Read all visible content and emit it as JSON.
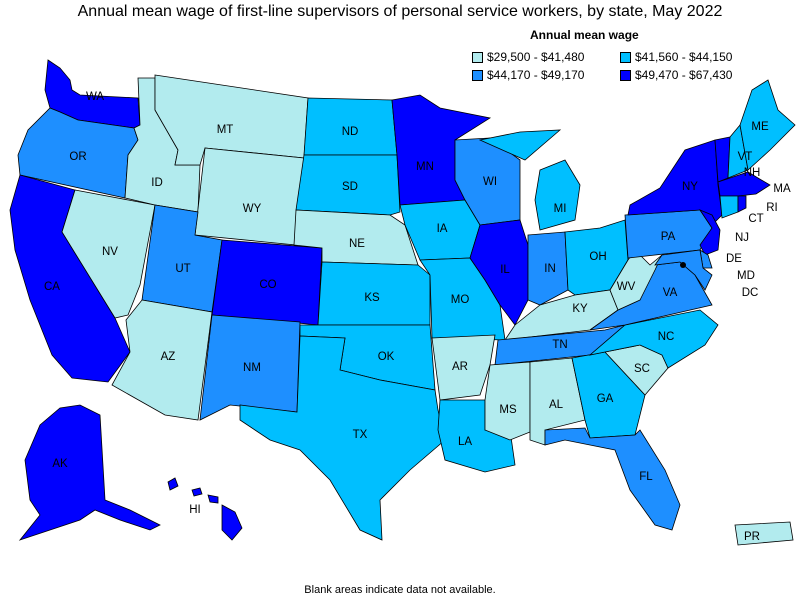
{
  "title": "Annual mean wage of first-line supervisors of personal service workers, by state, May 2022",
  "legend": {
    "title": "Annual mean wage",
    "bins": [
      {
        "label": "$29,500 - $41,480",
        "color": "#b2ebee"
      },
      {
        "label": "$41,560 - $44,150",
        "color": "#00bfff"
      },
      {
        "label": "$44,170 - $49,170",
        "color": "#1e8fff"
      },
      {
        "label": "$49,470 - $67,430",
        "color": "#0000ff"
      }
    ]
  },
  "footnote": "Blank areas indicate data not available.",
  "states": {
    "WA": "$49,470 - $67,430",
    "OR": "$44,170 - $49,170",
    "CA": "$49,470 - $67,430",
    "NV": "$29,500 - $41,480",
    "ID": "$29,500 - $41,480",
    "MT": "$29,500 - $41,480",
    "WY": "$29,500 - $41,480",
    "UT": "$44,170 - $49,170",
    "AZ": "$29,500 - $41,480",
    "CO": "$49,470 - $67,430",
    "NM": "$44,170 - $49,170",
    "ND": "$41,560 - $44,150",
    "SD": "$41,560 - $44,150",
    "NE": "$29,500 - $41,480",
    "KS": "$41,560 - $44,150",
    "OK": "$41,560 - $44,150",
    "TX": "$41,560 - $44,150",
    "MN": "$49,470 - $67,430",
    "IA": "$41,560 - $44,150",
    "MO": "$41,560 - $44,150",
    "AR": "$29,500 - $41,480",
    "LA": "$41,560 - $44,150",
    "WI": "$44,170 - $49,170",
    "IL": "$49,470 - $67,430",
    "MI": "$41,560 - $44,150",
    "IN": "$44,170 - $49,170",
    "OH": "$41,560 - $44,150",
    "KY": "$29,500 - $41,480",
    "TN": "$44,170 - $49,170",
    "MS": "$29,500 - $41,480",
    "AL": "$29,500 - $41,480",
    "GA": "$41,560 - $44,150",
    "FL": "$44,170 - $49,170",
    "SC": "$29,500 - $41,480",
    "NC": "$41,560 - $44,150",
    "VA": "$44,170 - $49,170",
    "WV": "$29,500 - $41,480",
    "PA": "$44,170 - $49,170",
    "NY": "$49,470 - $67,430",
    "VT": "$49,470 - $67,430",
    "NH": "$41,560 - $44,150",
    "ME": "$41,560 - $44,150",
    "MA": "$49,470 - $67,430",
    "RI": "$49,470 - $67,430",
    "CT": "$41,560 - $44,150",
    "NJ": "$49,470 - $67,430",
    "DE": "$44,170 - $49,170",
    "MD": "$44,170 - $49,170",
    "DC": "$49,470 - $67,430",
    "AK": "$49,470 - $67,430",
    "HI": "$49,470 - $67,430",
    "PR": "$29,500 - $41,480"
  }
}
